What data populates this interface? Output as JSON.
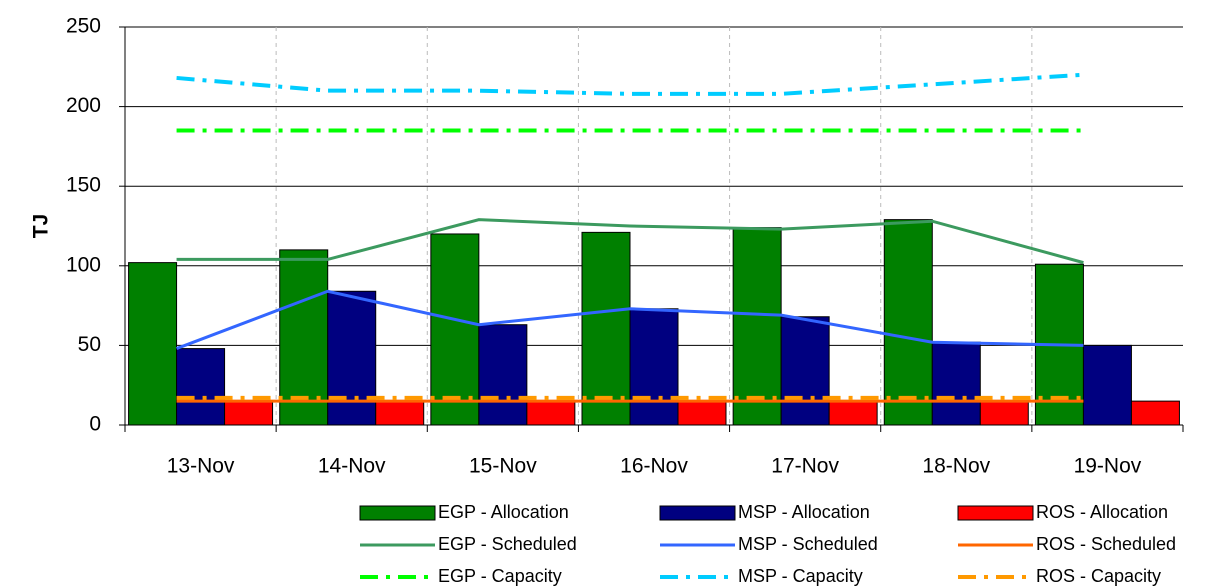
{
  "chart_data": {
    "type": "bar",
    "y_label": "TJ",
    "categories": [
      "13-Nov",
      "14-Nov",
      "15-Nov",
      "16-Nov",
      "17-Nov",
      "18-Nov",
      "19-Nov"
    ],
    "ylim": [
      0,
      250
    ],
    "yticks": [
      0,
      50,
      100,
      150,
      200,
      250
    ],
    "grid": true,
    "series": [
      {
        "name": "EGP - Allocation",
        "kind": "bar",
        "color": "#008000",
        "values": [
          102,
          110,
          120,
          121,
          124,
          129,
          101
        ]
      },
      {
        "name": "MSP - Allocation",
        "kind": "bar",
        "color": "#000080",
        "values": [
          48,
          84,
          63,
          73,
          68,
          52,
          50
        ]
      },
      {
        "name": "ROS - Allocation",
        "kind": "bar",
        "color": "#ff0000",
        "values": [
          15,
          15,
          15,
          15,
          15,
          15,
          15
        ]
      },
      {
        "name": "EGP - Scheduled",
        "kind": "line",
        "style": "solid",
        "color": "#3c9a5f",
        "values": [
          104,
          104,
          129,
          125,
          123,
          128,
          102
        ]
      },
      {
        "name": "MSP - Scheduled",
        "kind": "line",
        "style": "solid",
        "color": "#3366ff",
        "values": [
          48,
          84,
          63,
          73,
          69,
          52,
          50
        ]
      },
      {
        "name": "ROS - Scheduled",
        "kind": "line",
        "style": "solid",
        "color": "#ff6600",
        "values": [
          15,
          15,
          15,
          15,
          15,
          15,
          15
        ]
      },
      {
        "name": "EGP - Capacity",
        "kind": "line",
        "style": "dash-dot",
        "color": "#00ff00",
        "values": [
          185,
          185,
          185,
          185,
          185,
          185,
          185
        ]
      },
      {
        "name": "MSP - Capacity",
        "kind": "line",
        "style": "dash-dot",
        "color": "#00ccff",
        "values": [
          218,
          210,
          210,
          208,
          208,
          214,
          220
        ]
      },
      {
        "name": "ROS - Capacity",
        "kind": "line",
        "style": "dash-dot",
        "color": "#ff9900",
        "values": [
          17,
          17,
          17,
          17,
          17,
          17,
          17
        ]
      }
    ]
  }
}
